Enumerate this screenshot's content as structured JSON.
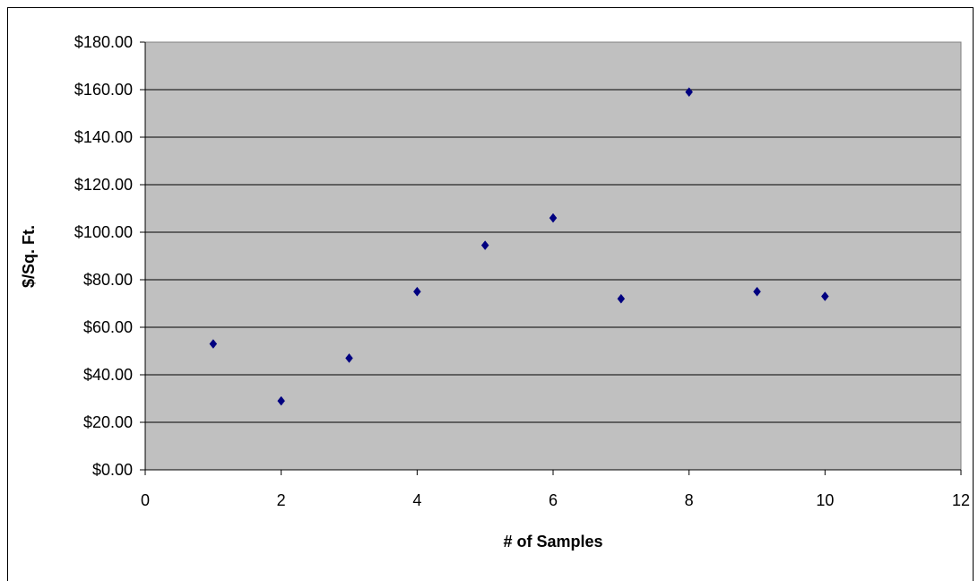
{
  "chart_data": {
    "type": "scatter",
    "xlabel": "# of Samples",
    "ylabel": "$/Sq. Ft.",
    "xlim": [
      0,
      12
    ],
    "ylim": [
      0,
      180
    ],
    "x_ticks": [
      0,
      2,
      4,
      6,
      8,
      10,
      12
    ],
    "y_ticks": [
      0,
      20,
      40,
      60,
      80,
      100,
      120,
      140,
      160,
      180
    ],
    "y_tick_labels": [
      "$0.00",
      "$20.00",
      "$40.00",
      "$60.00",
      "$80.00",
      "$100.00",
      "$120.00",
      "$140.00",
      "$160.00",
      "$180.00"
    ],
    "grid": "horizontal",
    "legend": "none",
    "plot_background": "#c0c0c0",
    "marker_color": "#000080",
    "marker": "diamond",
    "series": [
      {
        "x": [
          1,
          2,
          3,
          4,
          5,
          6,
          7,
          8,
          9,
          10
        ],
        "y": [
          53,
          29,
          47,
          75,
          94.5,
          106,
          72,
          159,
          75,
          73
        ]
      }
    ]
  }
}
